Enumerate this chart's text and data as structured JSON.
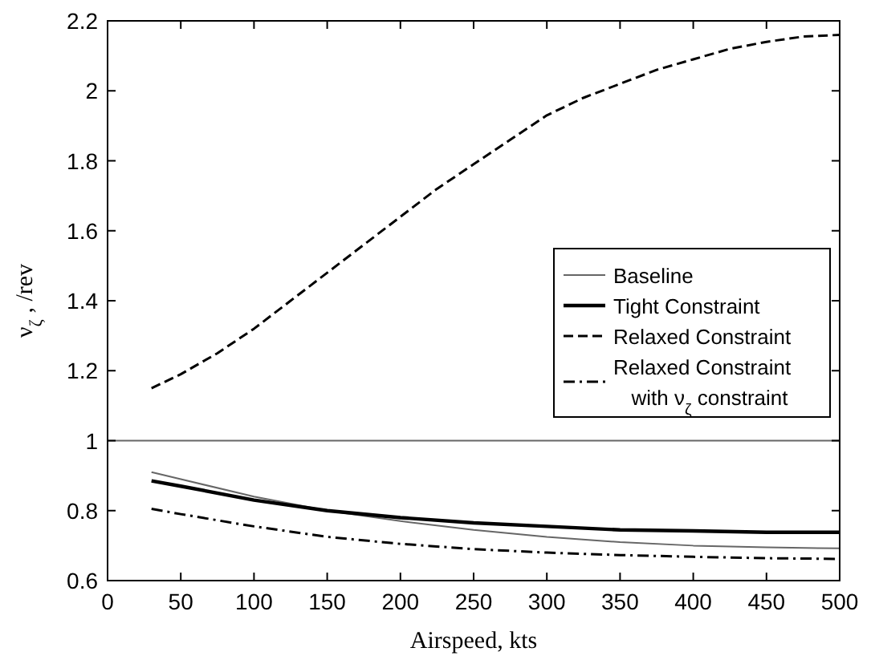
{
  "chart_data": {
    "type": "line",
    "xlabel": "Airspeed, kts",
    "ylabel": "ν$_{ζ}$ , /rev",
    "x": [
      30,
      50,
      100,
      150,
      200,
      250,
      300,
      350,
      400,
      450,
      500
    ],
    "series": [
      {
        "name": "Baseline",
        "color": "#666666",
        "line_style": "solid",
        "values": [
          0.91,
          0.89,
          0.84,
          0.8,
          0.77,
          0.745,
          0.725,
          0.71,
          0.7,
          0.695,
          0.692
        ]
      },
      {
        "name": "Tight Constraint",
        "color": "#000000",
        "line_style": "solid",
        "values": [
          0.885,
          0.87,
          0.83,
          0.8,
          0.78,
          0.765,
          0.755,
          0.745,
          0.742,
          0.738,
          0.738
        ]
      },
      {
        "name": "Relaxed Constraint",
        "color": "#000000",
        "line_style": "dashed",
        "x": [
          30,
          50,
          75,
          100,
          125,
          150,
          175,
          200,
          225,
          250,
          275,
          300,
          325,
          350,
          375,
          400,
          425,
          450,
          475,
          500
        ],
        "values": [
          1.15,
          1.19,
          1.25,
          1.32,
          1.4,
          1.48,
          1.56,
          1.64,
          1.72,
          1.79,
          1.86,
          1.93,
          1.98,
          2.02,
          2.06,
          2.09,
          2.12,
          2.14,
          2.155,
          2.16
        ]
      },
      {
        "name": "Relaxed Constraint with ν$_{ζ}$ constraint",
        "color": "#000000",
        "line_style": "dashdot",
        "values": [
          0.805,
          0.79,
          0.755,
          0.725,
          0.705,
          0.69,
          0.68,
          0.673,
          0.668,
          0.664,
          0.662
        ]
      }
    ],
    "ref_lines": [
      {
        "axis": "y",
        "value": 1,
        "color": "#666666"
      }
    ],
    "xlim": [
      0,
      500
    ],
    "xticks": [
      0,
      50,
      100,
      150,
      200,
      250,
      300,
      350,
      400,
      450,
      500
    ],
    "ylim": [
      0.6,
      2.2
    ],
    "yticks": [
      0.6,
      0.8,
      1,
      1.2,
      1.4,
      1.6,
      1.8,
      2,
      2.2
    ],
    "grid": false,
    "legend": "right"
  }
}
